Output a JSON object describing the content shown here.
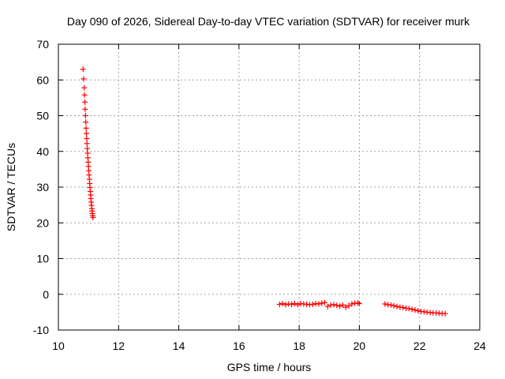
{
  "chart_data": {
    "type": "scatter",
    "title": "Day 090 of 2026, Sidereal Day-to-day VTEC variation (SDTVAR) for receiver murk",
    "xlabel": "GPS time / hours",
    "ylabel": "SDTVAR / TECUs",
    "xlim": [
      10,
      24
    ],
    "ylim": [
      -10,
      70
    ],
    "xticks": [
      10,
      12,
      14,
      16,
      18,
      20,
      22,
      24
    ],
    "yticks": [
      -10,
      0,
      10,
      20,
      30,
      40,
      50,
      60,
      70
    ],
    "xtick_labels": [
      "10",
      "12",
      "14",
      "16",
      "18",
      "20",
      "22",
      "24"
    ],
    "ytick_labels": [
      "-10",
      "0",
      "10",
      "20",
      "30",
      "40",
      "50",
      "60",
      "70"
    ],
    "grid": true,
    "marker": "+",
    "series_color": "#ff0000",
    "series": [
      {
        "name": "SDTVAR",
        "segments": [
          {
            "x": [
              10.82,
              10.84,
              10.86,
              10.87,
              10.88,
              10.89,
              10.9,
              10.91,
              10.92,
              10.93,
              10.94,
              10.95,
              10.96,
              10.97,
              10.98,
              10.99,
              11.0,
              11.01,
              11.02,
              11.03,
              11.04,
              11.05,
              11.06,
              11.07,
              11.08,
              11.09,
              11.1,
              11.11,
              11.12,
              11.13,
              11.14,
              11.15
            ],
            "y": [
              63.0,
              60.3,
              57.8,
              55.8,
              53.8,
              51.8,
              50.0,
              48.2,
              46.5,
              45.0,
              43.6,
              42.2,
              40.8,
              39.5,
              38.2,
              37.0,
              35.8,
              34.6,
              33.4,
              32.2,
              31.0,
              29.9,
              28.8,
              27.8,
              26.8,
              25.8,
              24.9,
              24.0,
              23.3,
              22.6,
              22.0,
              21.5
            ]
          },
          {
            "x": [
              17.35,
              17.45,
              17.55,
              17.65,
              17.75,
              17.85,
              17.95,
              18.05,
              18.15,
              18.25,
              18.35,
              18.45,
              18.55,
              18.65,
              18.75,
              18.85,
              18.95,
              19.05,
              19.15,
              19.25,
              19.35,
              19.45,
              19.55,
              19.65,
              19.75,
              19.85,
              19.95,
              20.0
            ],
            "y": [
              -2.8,
              -2.6,
              -2.9,
              -2.7,
              -2.8,
              -2.6,
              -2.9,
              -2.6,
              -2.7,
              -2.8,
              -2.9,
              -2.8,
              -2.6,
              -2.7,
              -2.5,
              -2.3,
              -3.4,
              -3.0,
              -2.9,
              -3.1,
              -3.3,
              -3.0,
              -3.6,
              -3.2,
              -2.7,
              -2.5,
              -2.4,
              -2.6
            ]
          },
          {
            "x": [
              20.85,
              20.95,
              21.05,
              21.15,
              21.25,
              21.35,
              21.45,
              21.55,
              21.65,
              21.75,
              21.85,
              21.95,
              22.05,
              22.15,
              22.25,
              22.35,
              22.45,
              22.55,
              22.65,
              22.75,
              22.85
            ],
            "y": [
              -2.7,
              -2.9,
              -3.0,
              -3.2,
              -3.4,
              -3.6,
              -3.7,
              -3.9,
              -4.0,
              -4.2,
              -4.4,
              -4.6,
              -4.8,
              -4.9,
              -5.0,
              -5.1,
              -5.2,
              -5.2,
              -5.3,
              -5.4,
              -5.4
            ]
          }
        ]
      }
    ]
  }
}
